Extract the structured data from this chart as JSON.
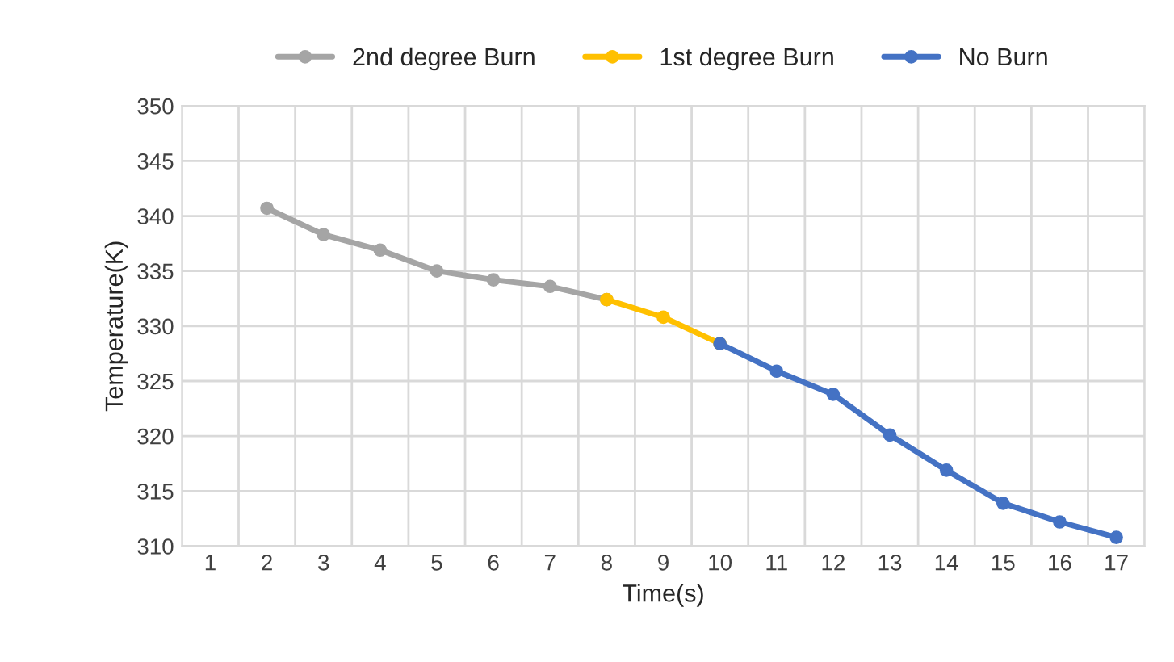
{
  "chart_data": {
    "type": "line",
    "xlabel": "Time(s)",
    "ylabel": "Temperature(K)",
    "categories": [
      "1",
      "2",
      "3",
      "4",
      "5",
      "6",
      "7",
      "8",
      "9",
      "10",
      "11",
      "12",
      "13",
      "14",
      "15",
      "16",
      "17"
    ],
    "series": [
      {
        "name": "2nd degree Burn",
        "color": "#a5a5a5",
        "values": [
          null,
          340.7,
          338.3,
          336.9,
          335.0,
          334.2,
          333.6,
          332.4,
          null,
          null,
          null,
          null,
          null,
          null,
          null,
          null,
          null
        ]
      },
      {
        "name": "1st degree Burn",
        "color": "#ffc000",
        "values": [
          null,
          null,
          null,
          null,
          null,
          null,
          null,
          332.4,
          330.8,
          328.4,
          null,
          null,
          null,
          null,
          null,
          null,
          null
        ]
      },
      {
        "name": "No Burn",
        "color": "#4472c4",
        "values": [
          null,
          null,
          null,
          null,
          null,
          null,
          null,
          null,
          null,
          328.4,
          325.9,
          323.8,
          320.1,
          316.9,
          313.9,
          312.2,
          310.8
        ]
      }
    ],
    "ylim": [
      310,
      350
    ],
    "yticks": [
      310,
      315,
      320,
      325,
      330,
      335,
      340,
      345,
      350
    ],
    "grid": true,
    "legend": "top",
    "marker": "circle",
    "line_style": "solid"
  }
}
